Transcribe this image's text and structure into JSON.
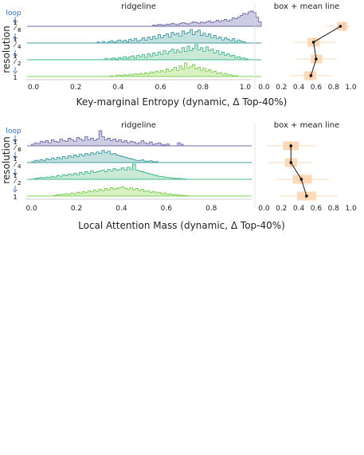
{
  "colors": {
    "background": "#ffffff",
    "ridge_fill": [
      "#c4c3df",
      "#b7dcd9",
      "#bfe8cf",
      "#d3f0b8"
    ],
    "ridge_line": [
      "#6e6ca8",
      "#3f9ba6",
      "#3fb98a",
      "#7ccf55"
    ],
    "box_fill": "#fbd3ad",
    "whisker": "#fce0c5",
    "mean_line": "#000000",
    "loop_label": "#3a6fc7",
    "axis": "#333333"
  },
  "chart_data": [
    {
      "type": "ridgeline",
      "panel_title": "ridgeline",
      "xlabel": "Key-marginal Entropy (dynamic, Δ Top-40%)",
      "ylabel": "resolution",
      "loop_label": "loop",
      "xlim": [
        -0.03,
        1.03
      ],
      "xticks": [
        "0.0",
        "0.2",
        "0.4",
        "0.6",
        "0.8",
        "1.0"
      ],
      "xtick_values": [
        0.0,
        0.2,
        0.4,
        0.6,
        0.8,
        1.0
      ],
      "bin_start": 0.3,
      "bin_width": 0.0125,
      "series": [
        {
          "name": "1/8",
          "values": [
            0,
            0,
            0,
            0,
            0,
            0,
            0,
            0,
            0,
            0,
            0,
            0,
            0,
            0,
            0,
            0,
            0,
            0,
            0,
            0,
            0,
            0.08,
            0.06,
            0.12,
            0.1,
            0.07,
            0.14,
            0.12,
            0.2,
            0.15,
            0.1,
            0.18,
            0.24,
            0.2,
            0.15,
            0.22,
            0.3,
            0.25,
            0.2,
            0.28,
            0.22,
            0.3,
            0.35,
            0.25,
            0.32,
            0.4,
            0.3,
            0.38,
            0.45,
            0.35,
            0.42,
            0.55,
            0.5,
            0.6,
            0.72,
            0.85,
            0.8,
            0.95,
            1.0,
            0.9,
            0.6,
            0.3
          ]
        },
        {
          "name": "1/4",
          "values": [
            0.06,
            0,
            0.1,
            0,
            0.08,
            0.15,
            0.05,
            0.12,
            0.2,
            0.1,
            0.18,
            0.08,
            0.25,
            0.15,
            0.3,
            0.12,
            0.2,
            0.35,
            0.18,
            0.4,
            0.25,
            0.45,
            0.3,
            0.55,
            0.35,
            0.5,
            0.6,
            0.4,
            0.7,
            0.55,
            0.65,
            0.45,
            0.8,
            0.6,
            0.7,
            0.9,
            0.55,
            0.75,
            0.85,
            0.5,
            0.65,
            0.45,
            0.6,
            0.35,
            0.5,
            0.3,
            0.4,
            0.2,
            0.35,
            0.25,
            0.15,
            0.3,
            0.1,
            0.2,
            0.12,
            0.08,
            0,
            0,
            0,
            0,
            0,
            0
          ]
        },
        {
          "name": "1/2",
          "values": [
            0,
            0,
            0,
            0.1,
            0,
            0.08,
            0.12,
            0.05,
            0.15,
            0.1,
            0.2,
            0.08,
            0.18,
            0.25,
            0.12,
            0.3,
            0.2,
            0.35,
            0.15,
            0.4,
            0.25,
            0.45,
            0.3,
            0.5,
            0.35,
            0.6,
            0.4,
            0.55,
            0.7,
            0.45,
            0.65,
            0.5,
            0.8,
            0.55,
            0.9,
            0.6,
            0.75,
            1.0,
            0.65,
            0.8,
            0.55,
            0.85,
            0.6,
            0.7,
            0.45,
            0.6,
            0.35,
            0.5,
            0.3,
            0.4,
            0.25,
            0.3,
            0.15,
            0.2,
            0.1,
            0.12,
            0.05,
            0,
            0,
            0,
            0,
            0
          ]
        },
        {
          "name": "1",
          "values": [
            0,
            0,
            0,
            0,
            0,
            0.05,
            0,
            0.08,
            0.1,
            0.06,
            0.12,
            0.08,
            0.15,
            0.1,
            0.18,
            0.12,
            0.2,
            0.15,
            0.25,
            0.18,
            0.3,
            0.22,
            0.35,
            0.28,
            0.4,
            0.3,
            0.5,
            0.35,
            0.45,
            0.6,
            0.4,
            0.7,
            0.5,
            0.9,
            0.55,
            0.65,
            0.8,
            0.5,
            0.6,
            0.4,
            0.55,
            0.35,
            0.45,
            0.3,
            0.35,
            0.2,
            0.25,
            0.15,
            0.2,
            0.1,
            0.12,
            0.05,
            0.06,
            0,
            0,
            0,
            0,
            0,
            0,
            0,
            0,
            0
          ]
        }
      ]
    },
    {
      "type": "box",
      "panel_title": "box + mean line",
      "xlim": [
        -0.05,
        1.05
      ],
      "xticks": [
        "0.0",
        "0.2",
        "0.4",
        "0.6",
        "0.8",
        "1.0"
      ],
      "xtick_values": [
        0.0,
        0.2,
        0.4,
        0.6,
        0.8,
        1.0
      ],
      "series": [
        {
          "name": "1/8",
          "whisker_low": 0.72,
          "q1": 0.84,
          "median": 0.92,
          "q3": 0.96,
          "whisker_high": 1.0,
          "mean": 0.88
        },
        {
          "name": "1/4",
          "whisker_low": 0.35,
          "q1": 0.5,
          "median": 0.58,
          "q3": 0.64,
          "whisker_high": 0.82,
          "mean": 0.57
        },
        {
          "name": "1/2",
          "whisker_low": 0.38,
          "q1": 0.54,
          "median": 0.6,
          "q3": 0.67,
          "whisker_high": 0.84,
          "mean": 0.6
        },
        {
          "name": "1",
          "whisker_low": 0.3,
          "q1": 0.46,
          "median": 0.53,
          "q3": 0.6,
          "whisker_high": 0.78,
          "mean": 0.54
        }
      ]
    },
    {
      "type": "ridgeline",
      "panel_title": "ridgeline",
      "xlabel": "Local Attention Mass (dynamic, Δ Top-40%)",
      "ylabel": "resolution",
      "loop_label": "loop",
      "xlim": [
        -0.02,
        0.98
      ],
      "xticks": [
        "0.0",
        "0.2",
        "0.4",
        "0.6",
        "0.8"
      ],
      "xtick_values": [
        0.0,
        0.2,
        0.4,
        0.6,
        0.8
      ],
      "bin_start": 0.0,
      "bin_width": 0.0125,
      "series": [
        {
          "name": "1/8",
          "values": [
            0.1,
            0.2,
            0.15,
            0.3,
            0.25,
            0.35,
            0.2,
            0.4,
            0.3,
            0.25,
            0.45,
            0.35,
            0.3,
            0.5,
            0.4,
            0.3,
            0.55,
            0.45,
            0.35,
            0.6,
            0.4,
            0.5,
            0.35,
            0.45,
            1.0,
            0.6,
            0.4,
            0.5,
            0.35,
            0.45,
            0.3,
            0.4,
            0.25,
            0.35,
            0.2,
            0.3,
            0.25,
            0.15,
            0.2,
            0.35,
            0.2,
            0.15,
            0.25,
            0.1,
            0.15,
            0.2,
            0.1,
            0.05,
            0.12,
            0,
            0,
            0,
            0.2,
            0.1,
            0,
            0,
            0,
            0,
            0,
            0,
            0,
            0,
            0,
            0,
            0,
            0,
            0,
            0,
            0,
            0,
            0,
            0,
            0,
            0
          ]
        },
        {
          "name": "1/4",
          "values": [
            0.05,
            0.15,
            0.1,
            0.2,
            0.12,
            0.25,
            0.18,
            0.3,
            0.2,
            0.35,
            0.25,
            0.4,
            0.3,
            0.45,
            0.35,
            0.5,
            0.4,
            0.55,
            0.45,
            0.6,
            0.5,
            0.65,
            0.55,
            0.7,
            0.6,
            0.8,
            0.65,
            0.75,
            0.55,
            0.6,
            0.5,
            0.45,
            0.4,
            0.35,
            0.3,
            0.25,
            0.2,
            0.15,
            0.12,
            0.18,
            0.1,
            0.08,
            0.12,
            0.05,
            0.06,
            0,
            0,
            0,
            0,
            0,
            0,
            0,
            0,
            0,
            0,
            0,
            0,
            0,
            0,
            0,
            0,
            0,
            0,
            0,
            0,
            0,
            0,
            0,
            0,
            0,
            0,
            0,
            0,
            0
          ]
        },
        {
          "name": "1/2",
          "values": [
            0,
            0.05,
            0.08,
            0.12,
            0.1,
            0.15,
            0.12,
            0.2,
            0.15,
            0.25,
            0.2,
            0.3,
            0.25,
            0.35,
            0.28,
            0.4,
            0.3,
            0.45,
            0.35,
            0.5,
            0.4,
            0.55,
            0.45,
            0.5,
            0.55,
            0.6,
            0.5,
            0.65,
            0.55,
            0.7,
            0.6,
            0.65,
            0.75,
            0.6,
            0.8,
            0.65,
            1.0,
            0.6,
            0.55,
            0.5,
            0.45,
            0.4,
            0.35,
            0.3,
            0.25,
            0.2,
            0.18,
            0.15,
            0.12,
            0.1,
            0.08,
            0.05,
            0.06,
            0.03,
            0.02,
            0,
            0,
            0,
            0,
            0,
            0,
            0,
            0,
            0,
            0,
            0,
            0,
            0,
            0,
            0,
            0,
            0,
            0,
            0
          ]
        },
        {
          "name": "1",
          "values": [
            0,
            0,
            0,
            0,
            0,
            0,
            0,
            0,
            0.05,
            0.1,
            0.08,
            0.12,
            0.15,
            0.1,
            0.2,
            0.15,
            0.25,
            0.18,
            0.3,
            0.22,
            0.35,
            0.28,
            0.4,
            0.3,
            0.45,
            0.35,
            0.5,
            0.4,
            0.55,
            0.45,
            0.5,
            0.55,
            0.6,
            0.5,
            0.45,
            0.55,
            0.4,
            0.5,
            0.35,
            0.45,
            0.3,
            0.35,
            0.25,
            0.3,
            0.2,
            0.25,
            0.15,
            0.2,
            0.1,
            0.15,
            0.08,
            0.1,
            0.05,
            0.06,
            0.03,
            0.02,
            0,
            0,
            0,
            0,
            0,
            0,
            0,
            0,
            0,
            0,
            0,
            0,
            0,
            0,
            0,
            0,
            0,
            0
          ]
        }
      ]
    },
    {
      "type": "box",
      "panel_title": "box + mean line",
      "xlim": [
        -0.05,
        1.05
      ],
      "xticks": [
        "0.0",
        "0.2",
        "0.4",
        "0.6",
        "0.8",
        "1.0"
      ],
      "xtick_values": [
        0.0,
        0.2,
        0.4,
        0.6,
        0.8,
        1.0
      ],
      "series": [
        {
          "name": "1/8",
          "whisker_low": 0.03,
          "q1": 0.22,
          "median": 0.3,
          "q3": 0.4,
          "whisker_high": 0.6,
          "mean": 0.31
        },
        {
          "name": "1/4",
          "whisker_low": 0.05,
          "q1": 0.24,
          "median": 0.31,
          "q3": 0.38,
          "whisker_high": 0.55,
          "mean": 0.31
        },
        {
          "name": "1/2",
          "whisker_low": 0.15,
          "q1": 0.33,
          "median": 0.43,
          "q3": 0.55,
          "whisker_high": 0.75,
          "mean": 0.43
        },
        {
          "name": "1",
          "whisker_low": 0.18,
          "q1": 0.38,
          "median": 0.48,
          "q3": 0.6,
          "whisker_high": 0.85,
          "mean": 0.49
        }
      ]
    }
  ]
}
